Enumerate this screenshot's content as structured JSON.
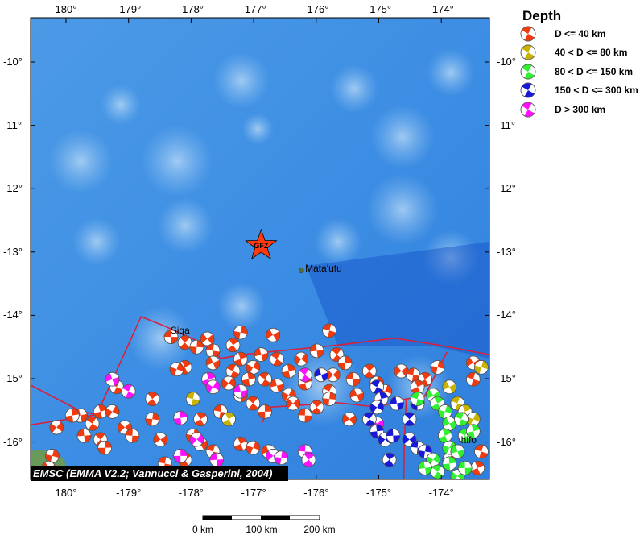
{
  "map": {
    "extent": {
      "lon": [
        179.43,
        -173.23
      ],
      "lat": [
        -16.6,
        -9.3
      ]
    },
    "lon_ticks": [
      {
        "lon": 180,
        "label": "180°"
      },
      {
        "lon": -179,
        "label": "-179°"
      },
      {
        "lon": -178,
        "label": "-178°"
      },
      {
        "lon": -177,
        "label": "-177°"
      },
      {
        "lon": -176,
        "label": "-176°"
      },
      {
        "lon": -175,
        "label": "-175°"
      },
      {
        "lon": -174,
        "label": "-174°"
      }
    ],
    "lat_ticks": [
      {
        "lat": -10,
        "label": "-10°"
      },
      {
        "lat": -11,
        "label": "-11°"
      },
      {
        "lat": -12,
        "label": "-12°"
      },
      {
        "lat": -13,
        "label": "-13°"
      },
      {
        "lat": -14,
        "label": "-14°"
      },
      {
        "lat": -15,
        "label": "-15°"
      },
      {
        "lat": -16,
        "label": "-16°"
      }
    ],
    "epicenter": {
      "lon": -176.88,
      "lat": -12.9,
      "label": "GFZ",
      "color": "#ff3a10"
    },
    "places": [
      {
        "name": "Mata'utu",
        "lon": -176.24,
        "lat": -13.29,
        "dot": true
      },
      {
        "name": "Siqa",
        "lon": -178.33,
        "lat": -14.28,
        "dot": false
      },
      {
        "name": "ihifo",
        "lon": -173.72,
        "lat": -16.0,
        "dot": false
      }
    ],
    "plate_boundaries": [
      [
        [
          179.43,
          -15.73
        ],
        [
          -179.51,
          -15.57
        ],
        [
          -178.8,
          -14.02
        ],
        [
          -178.42,
          -14.17
        ],
        [
          -177.84,
          -14.43
        ],
        [
          -177.52,
          -14.68
        ],
        [
          -177.19,
          -14.62
        ],
        [
          -175.65,
          -14.47
        ],
        [
          -174.75,
          -14.36
        ],
        [
          -174.04,
          -14.47
        ],
        [
          -173.23,
          -14.62
        ]
      ],
      [
        [
          179.43,
          -15.1
        ],
        [
          -179.77,
          -15.51
        ],
        [
          -179.51,
          -15.57
        ]
      ],
      [
        [
          -173.91,
          -14.58
        ],
        [
          -174.27,
          -15.28
        ],
        [
          -174.56,
          -15.32
        ],
        [
          -174.59,
          -15.96
        ],
        [
          -174.6,
          -16.59
        ]
      ],
      [
        [
          -176.87,
          -15.7
        ],
        [
          -176.74,
          -15.45
        ],
        [
          -175.65,
          -15.38
        ],
        [
          -175.01,
          -15.45
        ],
        [
          -174.56,
          -15.32
        ]
      ]
    ],
    "boundary_color": "#d8203a",
    "credit": "EMSC (EMMA V2.2; Vannucci & Gasperini, 2004)"
  },
  "legend": {
    "title": "Depth",
    "classes": [
      {
        "label": "D <= 40 km",
        "color": "#f03a10"
      },
      {
        "label": "40 < D <= 80 km",
        "color": "#c8b400"
      },
      {
        "label": "80 < D <= 150 km",
        "color": "#30f030"
      },
      {
        "label": "150 < D <= 300 km",
        "color": "#1818d8"
      },
      {
        "label": "D > 300 km",
        "color": "#ff10ff"
      }
    ]
  },
  "events": [
    [
      -178.32,
      -14.34,
      0
    ],
    [
      -178.1,
      -14.43,
      0
    ],
    [
      -177.91,
      -14.5,
      0
    ],
    [
      -177.74,
      -14.37,
      0
    ],
    [
      -177.65,
      -14.56,
      0
    ],
    [
      -177.33,
      -14.47,
      0
    ],
    [
      -177.21,
      -14.27,
      0
    ],
    [
      -176.69,
      -14.31,
      0
    ],
    [
      -175.79,
      -14.24,
      0
    ],
    [
      -178.1,
      -14.82,
      0
    ],
    [
      -178.23,
      -14.85,
      0
    ],
    [
      -177.65,
      -14.75,
      0
    ],
    [
      -177.33,
      -14.88,
      0
    ],
    [
      -177.21,
      -14.69,
      0
    ],
    [
      -177.01,
      -14.82,
      0
    ],
    [
      -176.88,
      -14.62,
      0
    ],
    [
      -176.63,
      -14.69,
      0
    ],
    [
      -176.44,
      -14.88,
      0
    ],
    [
      -176.24,
      -14.69,
      0
    ],
    [
      -175.99,
      -14.56,
      0
    ],
    [
      -175.67,
      -14.62,
      0
    ],
    [
      -175.54,
      -14.75,
      0
    ],
    [
      -175.73,
      -14.94,
      0
    ],
    [
      -175.41,
      -15.01,
      0
    ],
    [
      -175.15,
      -14.88,
      0
    ],
    [
      -175.03,
      -15.07,
      0
    ],
    [
      -174.64,
      -14.88,
      0
    ],
    [
      -174.45,
      -14.94,
      0
    ],
    [
      -174.26,
      -15.01,
      0
    ],
    [
      -174.06,
      -14.82,
      0
    ],
    [
      -173.49,
      -14.75,
      0
    ],
    [
      -173.49,
      -15.01,
      0
    ],
    [
      -174.38,
      -15.13,
      0
    ],
    [
      -174.9,
      -15.2,
      0
    ],
    [
      -175.35,
      -15.26,
      0
    ],
    [
      -175.79,
      -15.2,
      0
    ],
    [
      -176.18,
      -15.07,
      0
    ],
    [
      -176.44,
      -15.26,
      0
    ],
    [
      -176.63,
      -15.11,
      0
    ],
    [
      -176.82,
      -15.01,
      0
    ],
    [
      -177.08,
      -15.01,
      0
    ],
    [
      -177.4,
      -15.07,
      0
    ],
    [
      -177.21,
      -15.26,
      0
    ],
    [
      -177.01,
      -15.39,
      0
    ],
    [
      -176.82,
      -15.52,
      0
    ],
    [
      -176.37,
      -15.39,
      0
    ],
    [
      -176.18,
      -15.58,
      0
    ],
    [
      -175.99,
      -15.45,
      0
    ],
    [
      -175.79,
      -15.32,
      0
    ],
    [
      -175.47,
      -15.64,
      0
    ],
    [
      -177.53,
      -15.52,
      0
    ],
    [
      -177.85,
      -15.64,
      0
    ],
    [
      -177.97,
      -15.9,
      0
    ],
    [
      -177.85,
      -16.03,
      0
    ],
    [
      -177.65,
      -16.15,
      0
    ],
    [
      -177.21,
      -16.03,
      0
    ],
    [
      -177.01,
      -16.09,
      0
    ],
    [
      -176.76,
      -16.15,
      0
    ],
    [
      -179.19,
      -15.13,
      0
    ],
    [
      -179.45,
      -15.52,
      0
    ],
    [
      -179.26,
      -15.52,
      0
    ],
    [
      -179.77,
      -15.58,
      0
    ],
    [
      -179.58,
      -15.71,
      0
    ],
    [
      -179.9,
      -15.58,
      0
    ],
    [
      179.85,
      -15.77,
      0
    ],
    [
      -179.71,
      -15.9,
      0
    ],
    [
      -179.45,
      -15.96,
      0
    ],
    [
      -179.38,
      -16.09,
      0
    ],
    [
      -179.06,
      -15.77,
      0
    ],
    [
      -178.94,
      -15.9,
      0
    ],
    [
      -178.62,
      -15.32,
      0
    ],
    [
      -178.62,
      -15.64,
      0
    ],
    [
      -178.49,
      -15.96,
      0
    ],
    [
      -178.42,
      -16.34,
      0
    ],
    [
      -178.1,
      -16.28,
      0
    ],
    [
      179.78,
      -16.22,
      0
    ],
    [
      179.72,
      -16.41,
      0
    ],
    [
      -173.36,
      -16.15,
      0
    ],
    [
      -173.42,
      -16.41,
      0
    ],
    [
      -173.87,
      -16.28,
      0
    ],
    [
      -179.26,
      -15.01,
      4
    ],
    [
      -179.0,
      -15.2,
      4
    ],
    [
      -177.72,
      -15.01,
      4
    ],
    [
      -177.65,
      -15.13,
      4
    ],
    [
      -177.21,
      -15.2,
      4
    ],
    [
      -176.18,
      -14.94,
      4
    ],
    [
      -178.17,
      -15.62,
      4
    ],
    [
      -177.91,
      -15.96,
      4
    ],
    [
      -177.59,
      -16.28,
      4
    ],
    [
      -177.59,
      -16.54,
      4
    ],
    [
      -178.17,
      -16.22,
      4
    ],
    [
      -176.69,
      -16.22,
      4
    ],
    [
      -176.18,
      -16.15,
      4
    ],
    [
      -176.12,
      -16.28,
      4
    ],
    [
      -176.56,
      -16.25,
      4
    ],
    [
      -175.03,
      -15.71,
      4
    ],
    [
      -177.97,
      -15.32,
      1
    ],
    [
      -177.4,
      -15.64,
      1
    ],
    [
      -173.36,
      -14.82,
      1
    ],
    [
      -173.87,
      -15.13,
      1
    ],
    [
      -173.74,
      -15.39,
      1
    ],
    [
      -173.62,
      -15.52,
      1
    ],
    [
      -173.49,
      -15.64,
      1
    ],
    [
      -175.92,
      -14.94,
      3
    ],
    [
      -175.03,
      -15.13,
      3
    ],
    [
      -174.96,
      -15.32,
      3
    ],
    [
      -175.03,
      -15.45,
      3
    ],
    [
      -174.71,
      -15.39,
      3
    ],
    [
      -175.15,
      -15.64,
      3
    ],
    [
      -175.03,
      -15.83,
      3
    ],
    [
      -174.9,
      -15.96,
      3
    ],
    [
      -174.77,
      -15.9,
      3
    ],
    [
      -174.51,
      -15.64,
      3
    ],
    [
      -174.38,
      -15.39,
      3
    ],
    [
      -174.51,
      -15.96,
      3
    ],
    [
      -174.38,
      -16.09,
      3
    ],
    [
      -174.83,
      -16.28,
      3
    ],
    [
      -174.26,
      -16.15,
      3
    ],
    [
      -174.13,
      -15.26,
      2
    ],
    [
      -174.38,
      -15.32,
      2
    ],
    [
      -174.06,
      -15.39,
      2
    ],
    [
      -173.94,
      -15.52,
      2
    ],
    [
      -173.87,
      -15.71,
      2
    ],
    [
      -173.68,
      -15.64,
      2
    ],
    [
      -173.94,
      -15.9,
      2
    ],
    [
      -173.87,
      -16.09,
      2
    ],
    [
      -173.74,
      -16.15,
      2
    ],
    [
      -173.62,
      -15.9,
      2
    ],
    [
      -173.49,
      -15.83,
      2
    ],
    [
      -174.13,
      -16.28,
      2
    ],
    [
      -174.26,
      -16.41,
      2
    ],
    [
      -174.06,
      -16.47,
      2
    ],
    [
      -173.87,
      -16.34,
      2
    ],
    [
      -173.74,
      -16.54,
      2
    ],
    [
      -173.62,
      -16.41,
      2
    ]
  ],
  "scale_bar": {
    "labels": [
      "0 km",
      "100 km",
      "200 km"
    ]
  }
}
